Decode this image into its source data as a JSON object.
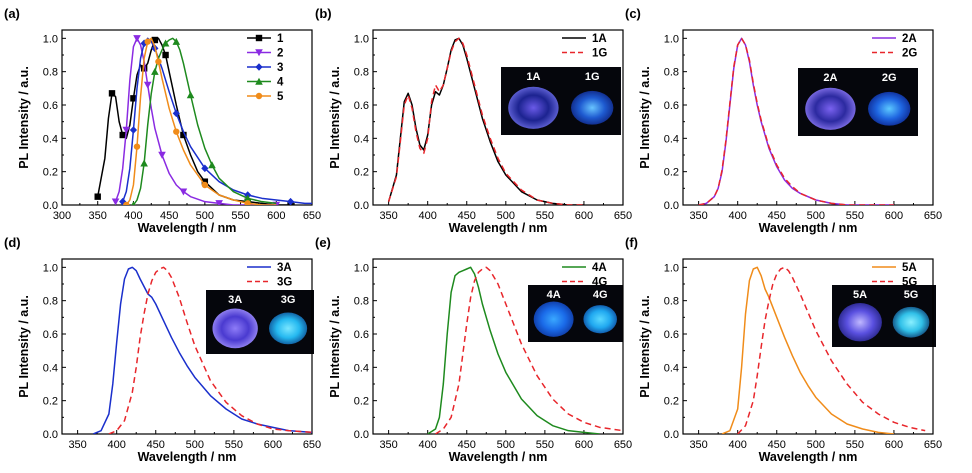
{
  "chart_data": [
    {
      "panel": "(a)",
      "type": "line",
      "xlabel": "Wavelength / nm",
      "ylabel": "PL Intensity / a.u.",
      "xlim": [
        300,
        650
      ],
      "ylim": [
        0,
        1.05
      ],
      "xticks": [
        300,
        350,
        400,
        450,
        500,
        550,
        600,
        650
      ],
      "yticks": [
        0.0,
        0.2,
        0.4,
        0.6,
        0.8,
        1.0
      ],
      "legend_position": "top-right",
      "series": [
        {
          "name": "1",
          "color": "#000000",
          "dash": "solid",
          "marker": "square",
          "x": [
            350,
            360,
            365,
            370,
            375,
            380,
            385,
            390,
            395,
            400,
            405,
            410,
            415,
            420,
            425,
            430,
            435,
            440,
            445,
            450,
            460,
            470,
            480,
            490,
            500,
            520,
            540,
            560,
            580,
            600,
            620
          ],
          "y": [
            0.05,
            0.28,
            0.52,
            0.67,
            0.65,
            0.5,
            0.42,
            0.4,
            0.48,
            0.64,
            0.78,
            0.84,
            0.82,
            0.85,
            0.93,
            0.99,
            1.0,
            0.96,
            0.9,
            0.8,
            0.6,
            0.42,
            0.3,
            0.2,
            0.14,
            0.06,
            0.03,
            0.02,
            0.01,
            0.0,
            0.0
          ]
        },
        {
          "name": "2",
          "color": "#8a2be2",
          "dash": "solid",
          "marker": "triangle-down",
          "x": [
            375,
            380,
            385,
            390,
            395,
            400,
            405,
            410,
            415,
            420,
            425,
            430,
            440,
            450,
            460,
            470,
            480,
            500,
            520,
            540,
            560,
            600
          ],
          "y": [
            0.02,
            0.08,
            0.22,
            0.45,
            0.75,
            0.95,
            1.0,
            0.96,
            0.86,
            0.72,
            0.58,
            0.46,
            0.3,
            0.19,
            0.12,
            0.08,
            0.05,
            0.02,
            0.01,
            0.0,
            0.0,
            0.0
          ]
        },
        {
          "name": "3",
          "color": "#1a2fcc",
          "dash": "solid",
          "marker": "diamond",
          "x": [
            385,
            390,
            395,
            400,
            405,
            410,
            415,
            420,
            425,
            430,
            440,
            450,
            460,
            470,
            480,
            500,
            520,
            540,
            560,
            580,
            600,
            620,
            640,
            650
          ],
          "y": [
            0.02,
            0.08,
            0.22,
            0.45,
            0.7,
            0.88,
            0.97,
            1.0,
            0.98,
            0.94,
            0.82,
            0.68,
            0.55,
            0.44,
            0.35,
            0.22,
            0.14,
            0.09,
            0.06,
            0.04,
            0.03,
            0.02,
            0.01,
            0.01
          ]
        },
        {
          "name": "4",
          "color": "#1e8a1e",
          "dash": "solid",
          "marker": "triangle-up",
          "x": [
            400,
            405,
            410,
            415,
            420,
            425,
            430,
            435,
            440,
            445,
            450,
            455,
            460,
            465,
            470,
            480,
            490,
            500,
            510,
            520,
            540,
            560,
            580,
            600
          ],
          "y": [
            0.0,
            0.03,
            0.1,
            0.25,
            0.48,
            0.67,
            0.8,
            0.88,
            0.93,
            0.97,
            0.99,
            1.0,
            0.98,
            0.93,
            0.85,
            0.66,
            0.48,
            0.34,
            0.24,
            0.16,
            0.08,
            0.04,
            0.02,
            0.01
          ]
        },
        {
          "name": "5",
          "color": "#f08c1a",
          "dash": "solid",
          "marker": "circle",
          "x": [
            390,
            395,
            400,
            405,
            410,
            415,
            420,
            425,
            430,
            435,
            440,
            450,
            460,
            470,
            480,
            500,
            520,
            540,
            560,
            580,
            600
          ],
          "y": [
            0.0,
            0.03,
            0.12,
            0.35,
            0.65,
            0.88,
            0.98,
            1.0,
            0.95,
            0.86,
            0.76,
            0.58,
            0.44,
            0.33,
            0.24,
            0.12,
            0.06,
            0.03,
            0.01,
            0.0,
            0.0
          ]
        }
      ]
    },
    {
      "panel": "(b)",
      "type": "line",
      "xlabel": "Wavelength / nm",
      "ylabel": "PL Intensity / a.u.",
      "xlim": [
        330,
        650
      ],
      "ylim": [
        0,
        1.05
      ],
      "xticks": [
        350,
        400,
        450,
        500,
        550,
        600,
        650
      ],
      "yticks": [
        0.0,
        0.2,
        0.4,
        0.6,
        0.8,
        1.0
      ],
      "legend_position": "top-right",
      "inset": {
        "labels": [
          "1A",
          "1G"
        ]
      },
      "series": [
        {
          "name": "1A",
          "color": "#000000",
          "dash": "solid",
          "x": [
            350,
            360,
            365,
            370,
            375,
            380,
            385,
            390,
            395,
            400,
            405,
            410,
            415,
            420,
            425,
            430,
            435,
            440,
            445,
            450,
            460,
            470,
            480,
            490,
            500,
            520,
            540,
            560,
            580,
            600
          ],
          "y": [
            0.02,
            0.18,
            0.4,
            0.62,
            0.67,
            0.6,
            0.46,
            0.36,
            0.33,
            0.42,
            0.6,
            0.68,
            0.66,
            0.72,
            0.82,
            0.93,
            0.99,
            1.0,
            0.96,
            0.88,
            0.7,
            0.52,
            0.38,
            0.26,
            0.18,
            0.08,
            0.03,
            0.01,
            0.0,
            0.0
          ]
        },
        {
          "name": "1G",
          "color": "#e8262b",
          "dash": "dashed",
          "x": [
            350,
            360,
            365,
            370,
            375,
            380,
            385,
            390,
            395,
            400,
            405,
            410,
            415,
            420,
            425,
            430,
            435,
            440,
            445,
            450,
            460,
            470,
            480,
            490,
            500,
            520,
            540,
            560,
            580,
            600
          ],
          "y": [
            0.02,
            0.17,
            0.38,
            0.6,
            0.66,
            0.58,
            0.44,
            0.34,
            0.31,
            0.4,
            0.62,
            0.72,
            0.68,
            0.72,
            0.82,
            0.92,
            0.98,
            1.0,
            0.97,
            0.9,
            0.72,
            0.54,
            0.4,
            0.28,
            0.19,
            0.09,
            0.03,
            0.01,
            0.0,
            0.0
          ]
        }
      ]
    },
    {
      "panel": "(c)",
      "type": "line",
      "xlabel": "Wavelength / nm",
      "ylabel": "PL Intensity / a.u.",
      "xlim": [
        330,
        650
      ],
      "ylim": [
        0,
        1.05
      ],
      "xticks": [
        350,
        400,
        450,
        500,
        550,
        600,
        650
      ],
      "yticks": [
        0.0,
        0.2,
        0.4,
        0.6,
        0.8,
        1.0
      ],
      "legend_position": "top-right",
      "inset": {
        "labels": [
          "2A",
          "2G"
        ]
      },
      "series": [
        {
          "name": "2A",
          "color": "#8a2be2",
          "dash": "solid",
          "x": [
            350,
            360,
            370,
            375,
            380,
            385,
            390,
            395,
            400,
            405,
            410,
            415,
            420,
            425,
            430,
            440,
            450,
            460,
            470,
            480,
            500,
            520,
            540,
            560,
            600
          ],
          "y": [
            0.0,
            0.01,
            0.05,
            0.1,
            0.2,
            0.38,
            0.6,
            0.82,
            0.96,
            1.0,
            0.96,
            0.86,
            0.72,
            0.6,
            0.5,
            0.34,
            0.23,
            0.15,
            0.1,
            0.07,
            0.03,
            0.01,
            0.0,
            0.0,
            0.0
          ]
        },
        {
          "name": "2G",
          "color": "#e8262b",
          "dash": "dashed",
          "x": [
            350,
            360,
            370,
            375,
            380,
            385,
            390,
            395,
            400,
            405,
            410,
            415,
            420,
            425,
            430,
            440,
            450,
            460,
            470,
            480,
            500,
            520,
            540,
            560,
            600
          ],
          "y": [
            0.0,
            0.01,
            0.05,
            0.1,
            0.21,
            0.39,
            0.61,
            0.83,
            0.96,
            1.0,
            0.96,
            0.87,
            0.73,
            0.61,
            0.51,
            0.35,
            0.24,
            0.16,
            0.11,
            0.07,
            0.03,
            0.01,
            0.0,
            0.0,
            0.0
          ]
        }
      ]
    },
    {
      "panel": "(d)",
      "type": "line",
      "xlabel": "Wavelength / nm",
      "ylabel": "PL Intensity / a.u.",
      "xlim": [
        330,
        650
      ],
      "ylim": [
        0,
        1.05
      ],
      "xticks": [
        350,
        400,
        450,
        500,
        550,
        600,
        650
      ],
      "yticks": [
        0.0,
        0.2,
        0.4,
        0.6,
        0.8,
        1.0
      ],
      "legend_position": "top-right",
      "inset": {
        "labels": [
          "3A",
          "3G"
        ]
      },
      "series": [
        {
          "name": "3A",
          "color": "#1a2fcc",
          "dash": "solid",
          "x": [
            370,
            380,
            390,
            395,
            400,
            405,
            410,
            415,
            420,
            425,
            430,
            440,
            445,
            450,
            460,
            470,
            480,
            490,
            500,
            520,
            540,
            560,
            580,
            600,
            620,
            650
          ],
          "y": [
            0.0,
            0.02,
            0.12,
            0.3,
            0.55,
            0.78,
            0.93,
            0.99,
            1.0,
            0.98,
            0.93,
            0.84,
            0.82,
            0.78,
            0.68,
            0.58,
            0.49,
            0.41,
            0.34,
            0.23,
            0.15,
            0.09,
            0.06,
            0.04,
            0.02,
            0.01
          ]
        },
        {
          "name": "3G",
          "color": "#e8262b",
          "dash": "dashed",
          "x": [
            390,
            400,
            410,
            420,
            425,
            430,
            435,
            440,
            445,
            450,
            455,
            460,
            465,
            470,
            480,
            490,
            500,
            520,
            540,
            560,
            580,
            600,
            620,
            650
          ],
          "y": [
            0.0,
            0.02,
            0.08,
            0.25,
            0.4,
            0.58,
            0.72,
            0.84,
            0.92,
            0.97,
            0.99,
            1.0,
            0.98,
            0.94,
            0.82,
            0.67,
            0.53,
            0.32,
            0.19,
            0.11,
            0.06,
            0.03,
            0.02,
            0.01
          ]
        }
      ]
    },
    {
      "panel": "(e)",
      "type": "line",
      "xlabel": "Wavelength / nm",
      "ylabel": "PL Intensity / a.u.",
      "xlim": [
        330,
        650
      ],
      "ylim": [
        0,
        1.05
      ],
      "xticks": [
        350,
        400,
        450,
        500,
        550,
        600,
        650
      ],
      "yticks": [
        0.0,
        0.2,
        0.4,
        0.6,
        0.8,
        1.0
      ],
      "legend_position": "top-right",
      "inset": {
        "labels": [
          "4A",
          "4G"
        ]
      },
      "series": [
        {
          "name": "4A",
          "color": "#1e8a1e",
          "dash": "solid",
          "x": [
            400,
            410,
            415,
            420,
            425,
            430,
            435,
            440,
            445,
            450,
            455,
            460,
            465,
            470,
            480,
            490,
            500,
            520,
            540,
            560,
            580,
            600,
            620
          ],
          "y": [
            0.0,
            0.03,
            0.1,
            0.3,
            0.6,
            0.85,
            0.95,
            0.97,
            0.98,
            0.99,
            1.0,
            0.96,
            0.88,
            0.78,
            0.62,
            0.48,
            0.37,
            0.21,
            0.11,
            0.05,
            0.02,
            0.01,
            0.0
          ]
        },
        {
          "name": "4G",
          "color": "#e8262b",
          "dash": "dashed",
          "x": [
            410,
            420,
            430,
            440,
            445,
            450,
            455,
            460,
            465,
            470,
            475,
            480,
            490,
            500,
            510,
            520,
            540,
            560,
            580,
            600,
            620,
            650
          ],
          "y": [
            0.0,
            0.03,
            0.1,
            0.3,
            0.48,
            0.66,
            0.82,
            0.92,
            0.97,
            0.99,
            1.0,
            0.98,
            0.9,
            0.78,
            0.66,
            0.54,
            0.35,
            0.21,
            0.12,
            0.07,
            0.04,
            0.02
          ]
        }
      ]
    },
    {
      "panel": "(f)",
      "type": "line",
      "xlabel": "Wavelength / nm",
      "ylabel": "PL Intensity / a.u.",
      "xlim": [
        330,
        650
      ],
      "ylim": [
        0,
        1.05
      ],
      "xticks": [
        350,
        400,
        450,
        500,
        550,
        600,
        650
      ],
      "yticks": [
        0.0,
        0.2,
        0.4,
        0.6,
        0.8,
        1.0
      ],
      "legend_position": "top-right",
      "inset": {
        "labels": [
          "5A",
          "5G"
        ]
      },
      "series": [
        {
          "name": "5A",
          "color": "#f08c1a",
          "dash": "solid",
          "x": [
            380,
            390,
            400,
            405,
            410,
            415,
            420,
            425,
            430,
            435,
            440,
            450,
            460,
            470,
            480,
            490,
            500,
            520,
            540,
            560,
            580,
            600
          ],
          "y": [
            0.0,
            0.02,
            0.15,
            0.4,
            0.72,
            0.92,
            0.99,
            1.0,
            0.95,
            0.87,
            0.82,
            0.7,
            0.58,
            0.47,
            0.37,
            0.29,
            0.22,
            0.12,
            0.06,
            0.03,
            0.01,
            0.0
          ]
        },
        {
          "name": "5G",
          "color": "#e8262b",
          "dash": "dashed",
          "x": [
            400,
            410,
            420,
            425,
            430,
            435,
            440,
            445,
            450,
            455,
            460,
            465,
            470,
            480,
            490,
            500,
            520,
            540,
            560,
            580,
            600,
            620,
            640
          ],
          "y": [
            0.0,
            0.05,
            0.2,
            0.35,
            0.52,
            0.68,
            0.8,
            0.9,
            0.96,
            0.99,
            1.0,
            0.98,
            0.94,
            0.84,
            0.73,
            0.62,
            0.44,
            0.3,
            0.19,
            0.12,
            0.07,
            0.04,
            0.02
          ]
        }
      ]
    }
  ]
}
